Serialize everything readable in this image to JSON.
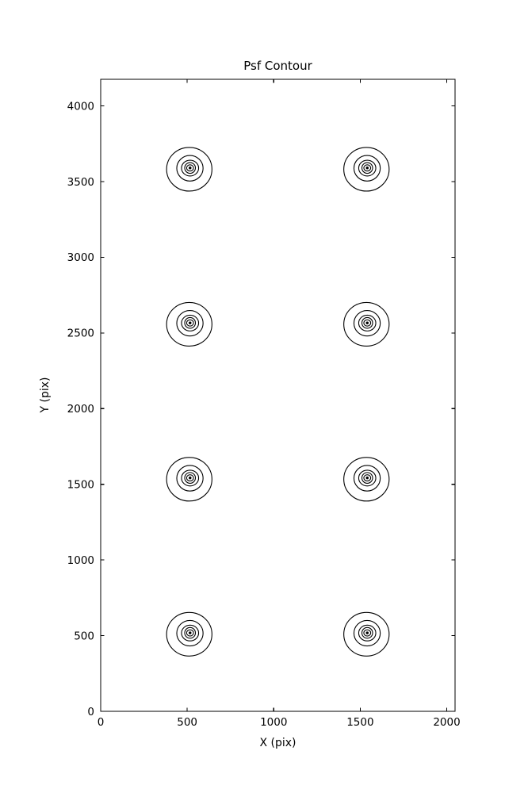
{
  "chart_data": {
    "type": "contour",
    "title": "Psf Contour",
    "xlabel": "X (pix)",
    "ylabel": "Y (pix)",
    "xlim": [
      0,
      2048
    ],
    "ylim": [
      0,
      4176
    ],
    "xticks": [
      0,
      500,
      1000,
      1500,
      2000
    ],
    "yticks": [
      0,
      500,
      1000,
      1500,
      2000,
      2500,
      3000,
      3500,
      4000
    ],
    "tick_direction": "in",
    "grid": false,
    "legend": "none",
    "line_color": "#000000",
    "background_color": "#ffffff",
    "psf_centers": [
      [
        512,
        512
      ],
      [
        1536,
        512
      ],
      [
        512,
        1536
      ],
      [
        1536,
        1536
      ],
      [
        512,
        2560
      ],
      [
        1536,
        2560
      ],
      [
        512,
        3584
      ],
      [
        1536,
        3584
      ]
    ],
    "contour_ring_radii_data_units": [
      126,
      76,
      48,
      31,
      19
    ],
    "center_dot_radius_data_units": 8
  }
}
